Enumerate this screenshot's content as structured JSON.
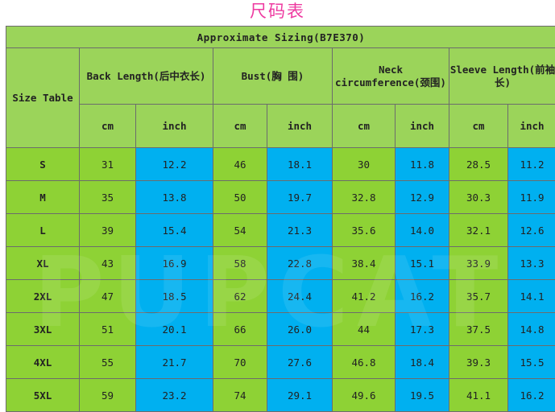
{
  "page": {
    "title": "尺码表"
  },
  "table": {
    "title": "Approximate Sizing(B7E370)",
    "row_header": "Size Table",
    "groups": [
      {
        "label": "Back Length(后中衣长)"
      },
      {
        "label": "Bust(胸 围)"
      },
      {
        "label": "Neck circumference(颈围)"
      },
      {
        "label": "Sleeve Length(前袖 长)"
      }
    ],
    "units": [
      "cm",
      "inch",
      "cm",
      "inch",
      "cm",
      "inch",
      "cm",
      "inch"
    ],
    "rows": [
      {
        "size": "S",
        "values": [
          "31",
          "12.2",
          "46",
          "18.1",
          "30",
          "11.8",
          "28.5",
          "11.2"
        ]
      },
      {
        "size": "M",
        "values": [
          "35",
          "13.8",
          "50",
          "19.7",
          "32.8",
          "12.9",
          "30.3",
          "11.9"
        ]
      },
      {
        "size": "L",
        "values": [
          "39",
          "15.4",
          "54",
          "21.3",
          "35.6",
          "14.0",
          "32.1",
          "12.6"
        ]
      },
      {
        "size": "XL",
        "values": [
          "43",
          "16.9",
          "58",
          "22.8",
          "38.4",
          "15.1",
          "33.9",
          "13.3"
        ]
      },
      {
        "size": "2XL",
        "values": [
          "47",
          "18.5",
          "62",
          "24.4",
          "41.2",
          "16.2",
          "35.7",
          "14.1"
        ]
      },
      {
        "size": "3XL",
        "values": [
          "51",
          "20.1",
          "66",
          "26.0",
          "44",
          "17.3",
          "37.5",
          "14.8"
        ]
      },
      {
        "size": "4XL",
        "values": [
          "55",
          "21.7",
          "70",
          "27.6",
          "46.8",
          "18.4",
          "39.3",
          "15.5"
        ]
      },
      {
        "size": "5XL",
        "values": [
          "59",
          "23.2",
          "74",
          "29.1",
          "49.6",
          "19.5",
          "41.1",
          "16.2"
        ]
      }
    ]
  },
  "watermark": {
    "text": "PUPCAT"
  },
  "colors": {
    "title_pink": "#ee3aa0",
    "header_green": "#9bd45a",
    "cm_green": "#8ed235",
    "inch_blue": "#00b0f0"
  }
}
